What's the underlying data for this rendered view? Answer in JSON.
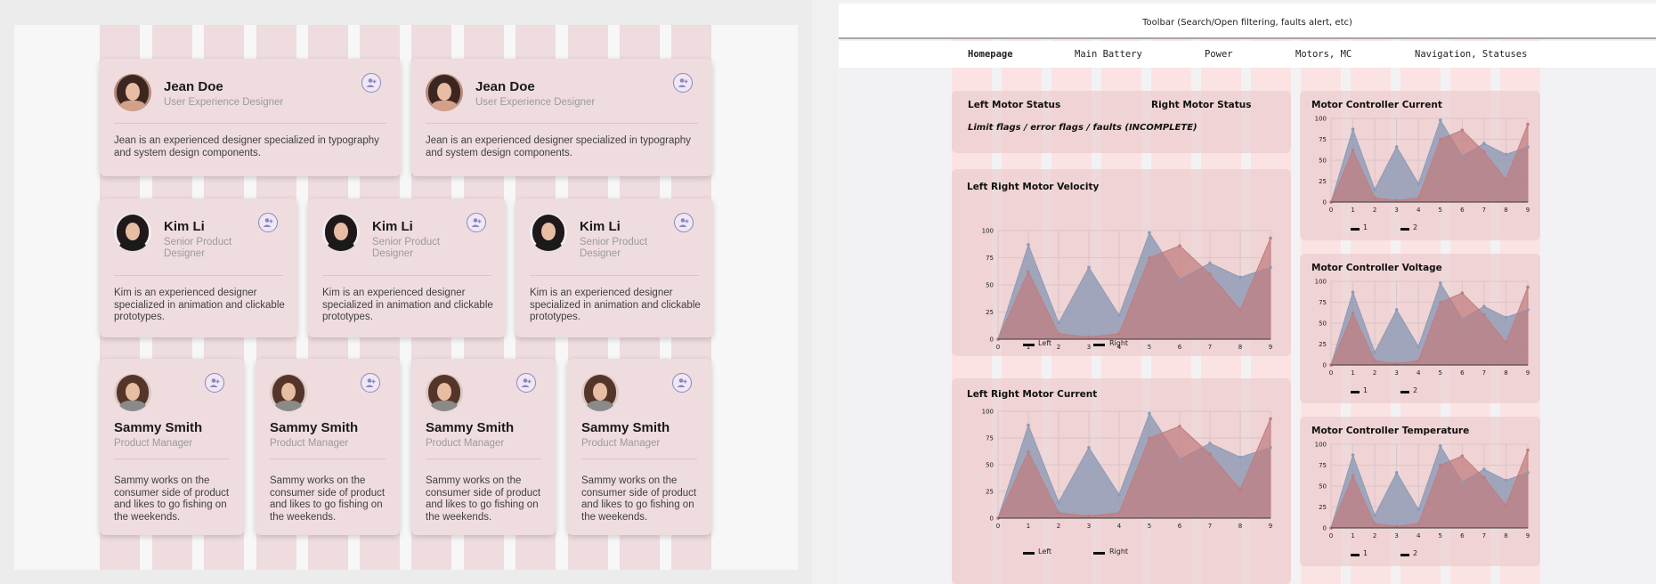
{
  "left_panel": {
    "cards_row1": [
      {
        "name": "Jean Doe",
        "role": "User Experience Designer",
        "description": "Jean is an experienced designer specialized in typography and system design components."
      },
      {
        "name": "Jean Doe",
        "role": "User Experience Designer",
        "description": "Jean is an experienced designer specialized in typography and system design components."
      }
    ],
    "cards_row2": [
      {
        "name": "Kim Li",
        "role": "Senior Product Designer",
        "description": "Kim is an experienced designer specialized in animation and clickable prototypes."
      },
      {
        "name": "Kim Li",
        "role": "Senior Product Designer",
        "description": "Kim is an experienced designer specialized in animation and clickable prototypes."
      },
      {
        "name": "Kim Li",
        "role": "Senior Product Designer",
        "description": "Kim is an experienced designer specialized in animation and clickable prototypes."
      }
    ],
    "cards_row3": [
      {
        "name": "Sammy Smith",
        "role": "Product Manager",
        "description": "Sammy works on the consumer side of product and likes to go fishing on the weekends."
      },
      {
        "name": "Sammy Smith",
        "role": "Product Manager",
        "description": "Sammy works on the consumer side of product and likes to go fishing on the weekends."
      },
      {
        "name": "Sammy Smith",
        "role": "Product Manager",
        "description": "Sammy works on the consumer side of product and likes to go fishing on the weekends."
      },
      {
        "name": "Sammy Smith",
        "role": "Product Manager",
        "description": "Sammy works on the consumer side of product and likes to go fishing on the weekends."
      }
    ],
    "icons": {
      "avatar": "avatar-photo",
      "add": "add-person-icon"
    }
  },
  "right_panel": {
    "toolbar_text": "Toolbar (Search/Open filtering, faults alert, etc)",
    "nav_tabs": [
      "Homepage",
      "Main Battery",
      "Power",
      "Motors, MC",
      "Navigation, Statuses"
    ],
    "status": {
      "left_title": "Left Motor Status",
      "right_title": "Right Motor Status",
      "note": "Limit flags / error flags / faults (INCOMPLETE)"
    },
    "colors": {
      "series_a": "#8d9bb6",
      "series_b": "#c07d80",
      "grid": "#d2c2c4"
    }
  },
  "chart_data": [
    {
      "type": "area",
      "title": "Left Right Motor Velocity",
      "x": [
        0,
        1,
        2,
        3,
        4,
        5,
        6,
        7,
        8,
        9
      ],
      "ylim": [
        0,
        100
      ],
      "yticks": [
        0,
        25,
        50,
        75,
        100
      ],
      "series": [
        {
          "name": "Left",
          "values": [
            0,
            87,
            15,
            66,
            22,
            98,
            55,
            70,
            57,
            66
          ]
        },
        {
          "name": "Right",
          "values": [
            0,
            62,
            5,
            2,
            5,
            75,
            86,
            60,
            27,
            93
          ]
        }
      ]
    },
    {
      "type": "area",
      "title": "Left Right Motor Current",
      "x": [
        0,
        1,
        2,
        3,
        4,
        5,
        6,
        7,
        8,
        9
      ],
      "ylim": [
        0,
        100
      ],
      "yticks": [
        0,
        25,
        50,
        75,
        100
      ],
      "series": [
        {
          "name": "Left",
          "values": [
            0,
            87,
            15,
            66,
            22,
            98,
            55,
            70,
            57,
            66
          ]
        },
        {
          "name": "Right",
          "values": [
            0,
            62,
            5,
            2,
            5,
            75,
            86,
            60,
            27,
            93
          ]
        }
      ]
    },
    {
      "type": "area",
      "title": "Motor Controller Current",
      "x": [
        0,
        1,
        2,
        3,
        4,
        5,
        6,
        7,
        8,
        9
      ],
      "ylim": [
        0,
        100
      ],
      "yticks": [
        0,
        25,
        50,
        75,
        100
      ],
      "series": [
        {
          "name": "1",
          "values": [
            0,
            87,
            15,
            66,
            22,
            98,
            55,
            70,
            57,
            66
          ]
        },
        {
          "name": "2",
          "values": [
            0,
            62,
            5,
            2,
            5,
            75,
            86,
            60,
            27,
            93
          ]
        }
      ]
    },
    {
      "type": "area",
      "title": "Motor Controller Voltage",
      "x": [
        0,
        1,
        2,
        3,
        4,
        5,
        6,
        7,
        8,
        9
      ],
      "ylim": [
        0,
        100
      ],
      "yticks": [
        0,
        25,
        50,
        75,
        100
      ],
      "series": [
        {
          "name": "1",
          "values": [
            0,
            87,
            15,
            66,
            22,
            98,
            55,
            70,
            57,
            66
          ]
        },
        {
          "name": "2",
          "values": [
            0,
            62,
            5,
            2,
            5,
            75,
            86,
            60,
            27,
            93
          ]
        }
      ]
    },
    {
      "type": "area",
      "title": "Motor Controller Temperature",
      "x": [
        0,
        1,
        2,
        3,
        4,
        5,
        6,
        7,
        8,
        9
      ],
      "ylim": [
        0,
        100
      ],
      "yticks": [
        0,
        25,
        50,
        75,
        100
      ],
      "series": [
        {
          "name": "1",
          "values": [
            0,
            87,
            15,
            66,
            22,
            98,
            55,
            70,
            57,
            66
          ]
        },
        {
          "name": "2",
          "values": [
            0,
            62,
            5,
            2,
            5,
            75,
            86,
            60,
            27,
            93
          ]
        }
      ]
    }
  ]
}
